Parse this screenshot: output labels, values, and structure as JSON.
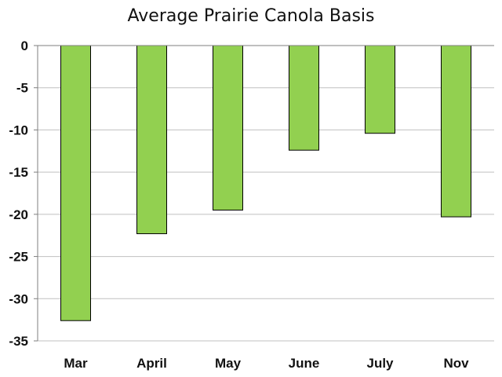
{
  "chart_data": {
    "type": "bar",
    "title": "Average Prairie Canola Basis",
    "xlabel": "",
    "ylabel": "",
    "categories": [
      "Mar",
      "April",
      "May",
      "June",
      "July",
      "Nov"
    ],
    "values": [
      -32.6,
      -22.3,
      -19.5,
      -12.4,
      -10.4,
      -20.3
    ],
    "ylim": [
      -35,
      0
    ],
    "yticks": [
      "0",
      "-5",
      "-10",
      "-15",
      "-20",
      "-25",
      "-30",
      "-35"
    ],
    "grid": true,
    "legend": "none",
    "colors": {
      "bar_fill": "#92D050",
      "bar_stroke": "#000000",
      "grid": "#c0c0c0",
      "axis": "#7f7f7f"
    }
  }
}
